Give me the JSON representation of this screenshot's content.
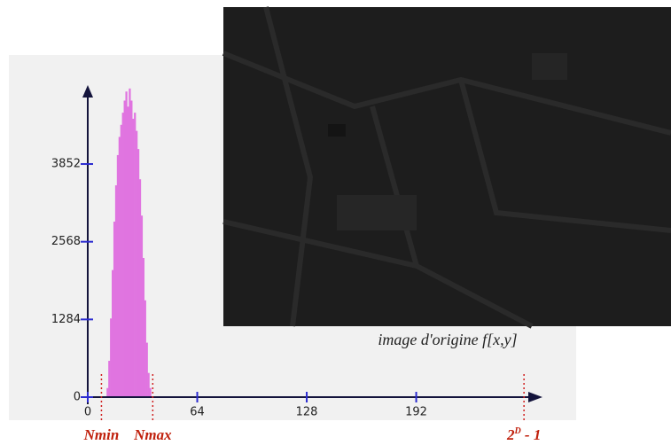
{
  "chart_data": {
    "type": "histogram",
    "bins": [
      11,
      12,
      13,
      14,
      15,
      16,
      17,
      18,
      19,
      20,
      21,
      22,
      23,
      24,
      25,
      26,
      27,
      28,
      29,
      30,
      31,
      32,
      33,
      34,
      35,
      36,
      37
    ],
    "values": [
      150,
      600,
      1300,
      2100,
      2900,
      3500,
      4000,
      4300,
      4500,
      4700,
      4900,
      5050,
      4800,
      5100,
      4900,
      4600,
      4700,
      4400,
      4100,
      3600,
      3000,
      2300,
      1600,
      900,
      400,
      150
    ],
    "color": "#e074e0",
    "xlim": [
      0,
      262
    ],
    "xticks": [
      0,
      64,
      128,
      192
    ],
    "ylim": [
      0,
      5200
    ],
    "yticks": [
      0,
      1284,
      2568,
      3852
    ],
    "markers": [
      {
        "label": [
          "Nmin"
        ],
        "value": 8
      },
      {
        "label": [
          "Nmax"
        ],
        "value": 38
      },
      {
        "label": [
          "2",
          "D",
          " - 1"
        ],
        "value": 255
      }
    ],
    "image_caption": "image d'origine f[x,y]"
  }
}
